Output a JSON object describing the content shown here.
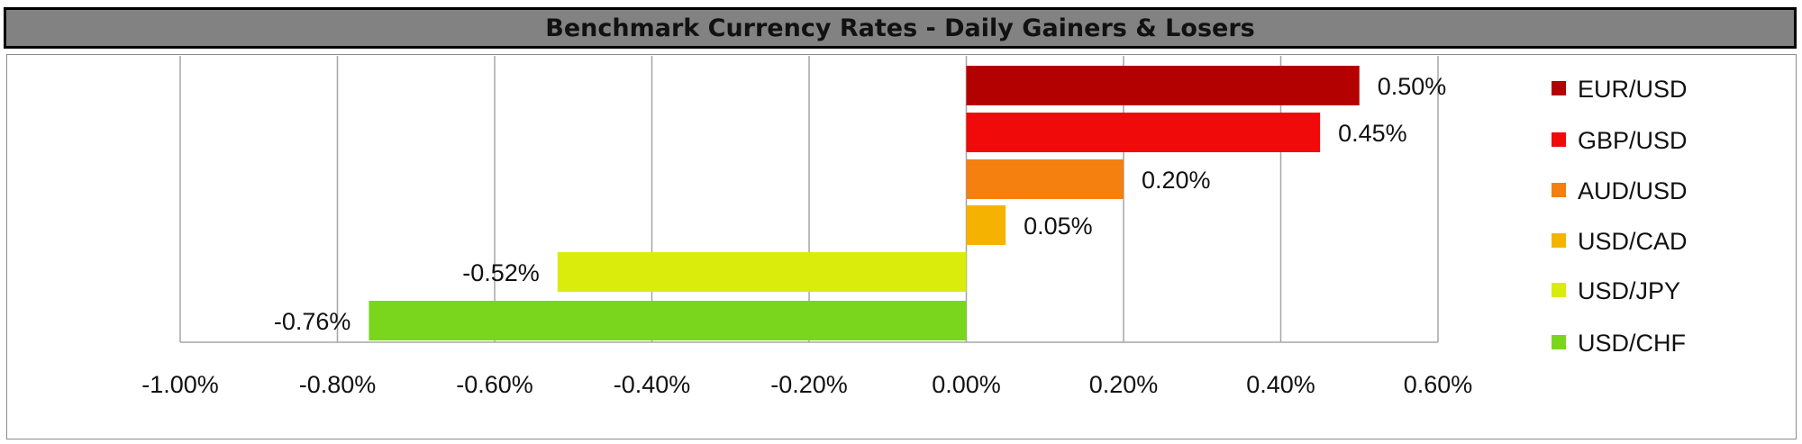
{
  "chart_data": {
    "type": "bar",
    "orientation": "horizontal",
    "title": "Benchmark Currency Rates - Daily Gainers & Losers",
    "categories": [
      "EUR/USD",
      "GBP/USD",
      "AUD/USD",
      "USD/CAD",
      "USD/JPY",
      "USD/CHF"
    ],
    "values": [
      0.5,
      0.45,
      0.2,
      0.05,
      -0.52,
      -0.76
    ],
    "value_labels": [
      "0.50%",
      "0.45%",
      "0.20%",
      "0.05%",
      "-0.52%",
      "-0.76%"
    ],
    "colors": [
      "#b30000",
      "#f00a0a",
      "#f57f0f",
      "#f5b300",
      "#d9ec0c",
      "#7ad61c"
    ],
    "xlim": [
      -1.0,
      0.6
    ],
    "x_ticks": [
      -1.0,
      -0.8,
      -0.6,
      -0.4,
      -0.2,
      0.0,
      0.2,
      0.4,
      0.6
    ],
    "x_tick_labels": [
      "-1.00%",
      "-0.80%",
      "-0.60%",
      "-0.40%",
      "-0.20%",
      "0.00%",
      "0.20%",
      "0.40%",
      "0.60%"
    ],
    "grid": true,
    "legend_position": "right"
  }
}
